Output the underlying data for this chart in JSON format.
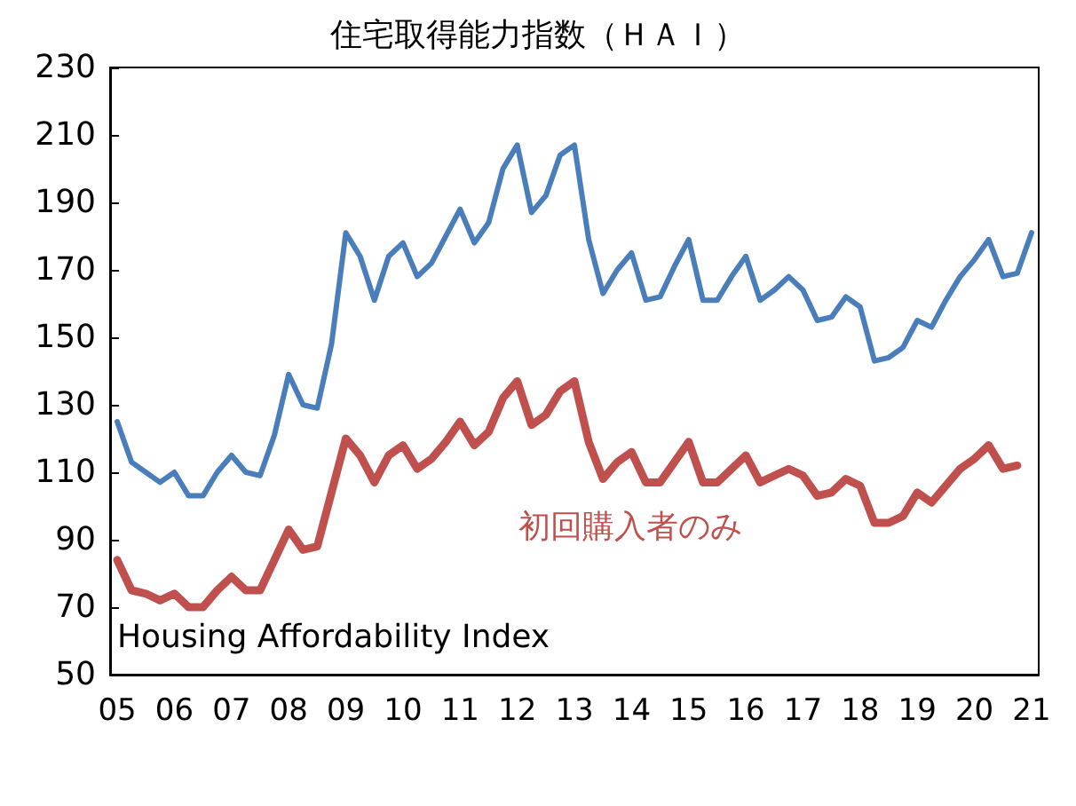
{
  "chart_data": {
    "type": "line",
    "title": "住宅取得能力指数（ＨＡＩ）",
    "categories": [
      "05",
      null,
      null,
      null,
      "06",
      null,
      null,
      null,
      "07",
      null,
      null,
      null,
      "08",
      null,
      null,
      null,
      "09",
      null,
      null,
      null,
      "10",
      null,
      null,
      null,
      "11",
      null,
      null,
      null,
      "12",
      null,
      null,
      null,
      "13",
      null,
      null,
      null,
      "14",
      null,
      null,
      null,
      "15",
      null,
      null,
      null,
      "16",
      null,
      null,
      null,
      "17",
      null,
      null,
      null,
      "18",
      null,
      null,
      null,
      "19",
      null,
      null,
      null,
      "20",
      null,
      null,
      null,
      "21"
    ],
    "series": [
      {
        "color": "#4a7ebb",
        "values": [
          125,
          113,
          110,
          107,
          110,
          103,
          103,
          110,
          115,
          110,
          109,
          121,
          139,
          130,
          129,
          148,
          181,
          174,
          161,
          174,
          178,
          168,
          172,
          180,
          188,
          178,
          184,
          200,
          207,
          187,
          192,
          204,
          207,
          179,
          163,
          170,
          175,
          161,
          162,
          171,
          179,
          161,
          161,
          168,
          174,
          161,
          164,
          168,
          164,
          155,
          156,
          162,
          159,
          143,
          144,
          147,
          155,
          153,
          161,
          168,
          173,
          179,
          168,
          169,
          181
        ]
      },
      {
        "name": "初回購入者のみ",
        "color": "#c0504d",
        "values": [
          84,
          75,
          74,
          72,
          74,
          70,
          70,
          75,
          79,
          75,
          75,
          84,
          93,
          87,
          88,
          104,
          120,
          115,
          107,
          115,
          118,
          111,
          114,
          119,
          125,
          118,
          122,
          132,
          137,
          124,
          127,
          134,
          137,
          119,
          108,
          113,
          116,
          107,
          107,
          113,
          119,
          107,
          107,
          111,
          115,
          107,
          109,
          111,
          109,
          103,
          104,
          108,
          106,
          95,
          95,
          97,
          104,
          101,
          106,
          111,
          114,
          118,
          111,
          112,
          null
        ]
      }
    ],
    "ylim": [
      50,
      230
    ],
    "yticks": [
      50,
      70,
      90,
      110,
      130,
      150,
      170,
      190,
      210,
      230
    ],
    "annotations": [
      "Housing Affordability Index"
    ],
    "grid": false,
    "legend": false,
    "marker": "none",
    "line_style": "solid"
  }
}
